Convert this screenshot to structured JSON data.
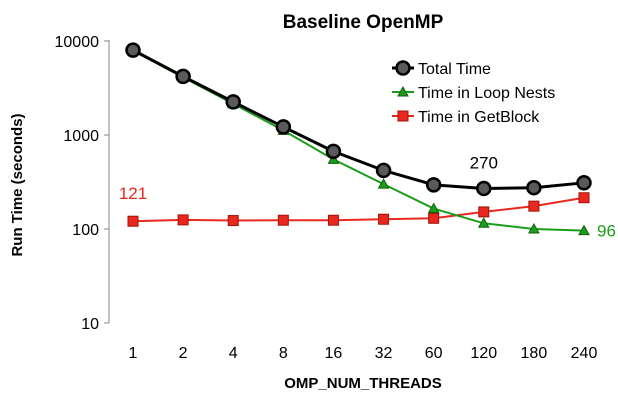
{
  "chart_data": {
    "type": "line",
    "title": "Baseline OpenMP",
    "xlabel": "OMP_NUM_THREADS",
    "ylabel": "Run Time (seconds)",
    "yscale": "log",
    "ylim": [
      10,
      10000
    ],
    "yticks": [
      "10",
      "100",
      "1000",
      "10000"
    ],
    "categories": [
      "1",
      "2",
      "4",
      "8",
      "16",
      "32",
      "60",
      "120",
      "180",
      "240"
    ],
    "grid": false,
    "legend_position": "top-right",
    "series": [
      {
        "name": "Total Time",
        "color": "#000000",
        "marker": "circle",
        "values": [
          8000,
          4200,
          2250,
          1220,
          670,
          420,
          295,
          270,
          275,
          310
        ]
      },
      {
        "name": "Time in Loop Nests",
        "color": "#1a9e1a",
        "marker": "triangle",
        "values": [
          7900,
          4100,
          2150,
          1120,
          550,
          300,
          165,
          115,
          100,
          96
        ]
      },
      {
        "name": "Time in GetBlock",
        "color": "#e8281e",
        "marker": "square",
        "values": [
          121,
          125,
          123,
          124,
          124,
          127,
          130,
          152,
          175,
          215
        ]
      }
    ],
    "annotations": [
      {
        "text": "121",
        "color": "#e8281e",
        "series": 2,
        "index": 0
      },
      {
        "text": "270",
        "color": "#000000",
        "series": 0,
        "index": 7
      },
      {
        "text": "96",
        "color": "#1a9e1a",
        "series": 1,
        "index": 9
      }
    ]
  }
}
